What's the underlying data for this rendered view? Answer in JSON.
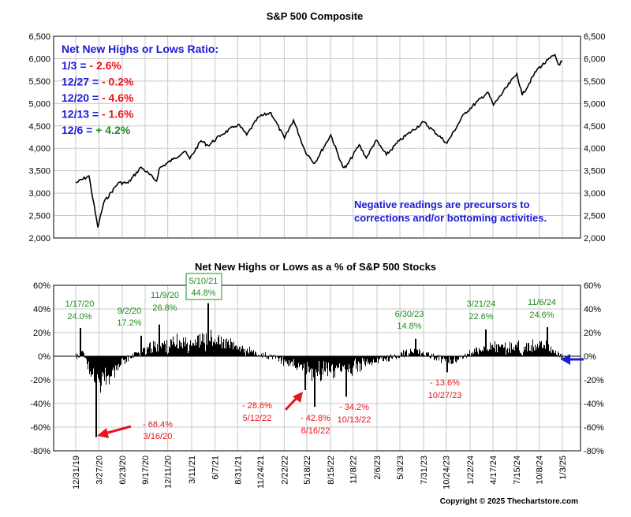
{
  "chart_data": [
    {
      "type": "line",
      "title": "S&P 500 Composite",
      "ylim": [
        2000,
        6500
      ],
      "yticks": [
        "2,000",
        "2,500",
        "3,000",
        "3,500",
        "4,000",
        "4,500",
        "5,000",
        "5,500",
        "6,000",
        "6,500"
      ],
      "ytick_values": [
        2000,
        2500,
        3000,
        3500,
        4000,
        4500,
        5000,
        5500,
        6000,
        6500
      ],
      "grid": true,
      "series": [
        {
          "values_note": "",
          "x": [
            "12/31/19",
            "2/19/20",
            "3/23/20",
            "4/15/20",
            "6/8/20",
            "7/15/20",
            "9/2/20",
            "10/30/20",
            "11/9/20",
            "12/31/20",
            "2/12/21",
            "3/4/21",
            "4/15/21",
            "5/12/21",
            "6/30/21",
            "8/15/21",
            "9/2/21",
            "10/4/21",
            "11/18/21",
            "1/3/22",
            "2/23/22",
            "3/29/22",
            "5/12/22",
            "6/16/22",
            "8/16/22",
            "9/30/22",
            "10/12/22",
            "12/1/22",
            "12/28/22",
            "2/2/23",
            "3/13/23",
            "5/1/23",
            "7/31/23",
            "10/27/23",
            "12/31/23",
            "3/28/24",
            "4/19/24",
            "7/16/24",
            "8/5/24",
            "9/30/24",
            "12/6/24",
            "12/19/24",
            "1/3/25"
          ],
          "values": [
            3230,
            3386,
            2237,
            2800,
            3232,
            3227,
            3580,
            3270,
            3550,
            3756,
            3934,
            3768,
            4170,
            4063,
            4300,
            4470,
            4536,
            4300,
            4700,
            4797,
            4225,
            4630,
            3930,
            3667,
            4300,
            3585,
            3577,
            4080,
            3783,
            4180,
            3855,
            4169,
            4589,
            4117,
            4770,
            5254,
            4967,
            5667,
            5186,
            5762,
            6090,
            5867,
            5942
          ]
        }
      ],
      "annotations": {
        "ratio_header": "Net New Highs or Lows Ratio:",
        "ratio_rows": [
          {
            "date": "1/3 =",
            "value": " - 2.6%",
            "color": "#e8141c"
          },
          {
            "date": "12/27 =",
            "value": "  - 0.2%",
            "color": "#e8141c"
          },
          {
            "date": "12/20 =",
            "value": " - 4.6%",
            "color": "#e8141c"
          },
          {
            "date": "12/13 =",
            "value": " - 1.6%",
            "color": "#e8141c"
          },
          {
            "date": "12/6 =",
            "value": " + 4.2%",
            "color": "#1e8c1e"
          }
        ],
        "note_line1": "Negative readings are precursors to",
        "note_line2": "corrections and/or bottoming activities."
      }
    },
    {
      "type": "bar",
      "title": "Net New Highs or Lows as a % of S&P 500 Stocks",
      "ylim": [
        -80,
        60
      ],
      "yticks": [
        "60%",
        "40%",
        "20%",
        "0%",
        "-20%",
        "-40%",
        "-60%",
        "-80%"
      ],
      "ytick_values": [
        60,
        40,
        20,
        0,
        -20,
        -40,
        -60,
        -80
      ],
      "grid": true,
      "x_tick_labels": [
        "12/31/19",
        "3/27/20",
        "6/23/20",
        "9/17/20",
        "12/11/20",
        "3/11/21",
        "6/7/21",
        "8/31/21",
        "11/24/21",
        "2/22/22",
        "5/18/22",
        "8/15/22",
        "11/8/22",
        "2/6/23",
        "5/3/23",
        "7/31/23",
        "10/24/23",
        "1/22/24",
        "4/17/24",
        "7/15/24",
        "10/8/24",
        "1/3/25"
      ],
      "key_points": [
        {
          "date": "1/17/20",
          "value": 24.0
        },
        {
          "date": "3/16/20",
          "value": -68.4
        },
        {
          "date": "9/2/20",
          "value": 17.2
        },
        {
          "date": "11/9/20",
          "value": 26.8
        },
        {
          "date": "5/10/21",
          "value": 44.8
        },
        {
          "date": "5/12/22",
          "value": -28.6
        },
        {
          "date": "6/16/22",
          "value": -42.8
        },
        {
          "date": "10/13/22",
          "value": -34.2
        },
        {
          "date": "6/30/23",
          "value": 14.8
        },
        {
          "date": "10/27/23",
          "value": -13.6
        },
        {
          "date": "3/21/24",
          "value": 22.6
        },
        {
          "date": "11/6/24",
          "value": 24.6
        },
        {
          "date": "1/3/25",
          "value": -2.6
        }
      ],
      "labels": {
        "jan20": {
          "date": "1/17/20",
          "value": "24.0%"
        },
        "sep20": {
          "date": "9/2/20",
          "value": "17.2%"
        },
        "nov20": {
          "date": "11/9/20",
          "value": "26.8%"
        },
        "may21": {
          "date": "5/10/21",
          "value": "44.8%"
        },
        "jun23": {
          "date": "6/30/23",
          "value": "14.8%"
        },
        "mar24": {
          "date": "3/21/24",
          "value": "22.6%"
        },
        "nov24": {
          "date": "11/6/24",
          "value": "24.6%"
        },
        "mar20": {
          "value": "- 68.4%",
          "date": "3/16/20"
        },
        "may22": {
          "value": "- 28.6%",
          "date": "5/12/22"
        },
        "jun22": {
          "value": "- 42.8%",
          "date": "6/16/22"
        },
        "oct22": {
          "value": "- 34.2%",
          "date": "10/13/22"
        },
        "oct23": {
          "value": "- 13.6%",
          "date": "10/27/23"
        }
      }
    }
  ],
  "footer": {
    "copyright": "Copyright © 2025 Thechartstore.com"
  },
  "colors": {
    "blue": "#1b1bd6",
    "red": "#e8141c",
    "green": "#1e8c1e",
    "black": "#000000",
    "grid": "#c8c8c8"
  }
}
